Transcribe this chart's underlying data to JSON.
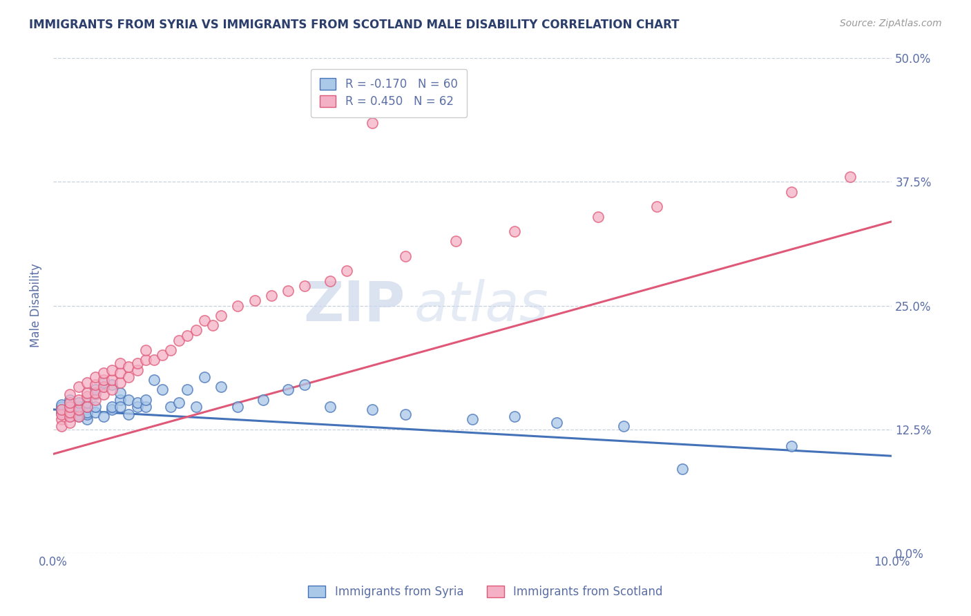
{
  "title": "IMMIGRANTS FROM SYRIA VS IMMIGRANTS FROM SCOTLAND MALE DISABILITY CORRELATION CHART",
  "source": "Source: ZipAtlas.com",
  "ylabel": "Male Disability",
  "xlim": [
    0.0,
    0.1
  ],
  "ylim": [
    0.0,
    0.5
  ],
  "xticks": [
    0.0,
    0.02,
    0.04,
    0.06,
    0.08,
    0.1
  ],
  "xtick_labels": [
    "0.0%",
    "",
    "",
    "",
    "",
    "10.0%"
  ],
  "ytick_labels": [
    "0.0%",
    "12.5%",
    "25.0%",
    "37.5%",
    "50.0%"
  ],
  "yticks": [
    0.0,
    0.125,
    0.25,
    0.375,
    0.5
  ],
  "R_syria": -0.17,
  "N_syria": 60,
  "R_scotland": 0.45,
  "N_scotland": 62,
  "color_syria": "#aac8e8",
  "color_scotland": "#f4b0c4",
  "line_color_syria": "#4472b8",
  "line_color_scotland": "#e05878",
  "title_color": "#2c3e6b",
  "axis_label_color": "#5b6fa6",
  "tick_color": "#5b6fa6",
  "watermark_zip": "ZIP",
  "watermark_atlas": "atlas",
  "legend_entry_syria": "Immigrants from Syria",
  "legend_entry_scotland": "Immigrants from Scotland",
  "syria_x": [
    0.001,
    0.001,
    0.001,
    0.001,
    0.002,
    0.002,
    0.002,
    0.002,
    0.002,
    0.002,
    0.003,
    0.003,
    0.003,
    0.003,
    0.003,
    0.004,
    0.004,
    0.004,
    0.004,
    0.004,
    0.005,
    0.005,
    0.005,
    0.005,
    0.006,
    0.006,
    0.006,
    0.007,
    0.007,
    0.007,
    0.008,
    0.008,
    0.008,
    0.009,
    0.009,
    0.01,
    0.01,
    0.011,
    0.011,
    0.012,
    0.013,
    0.014,
    0.015,
    0.016,
    0.017,
    0.018,
    0.02,
    0.022,
    0.025,
    0.028,
    0.03,
    0.033,
    0.038,
    0.042,
    0.05,
    0.055,
    0.06,
    0.068,
    0.075,
    0.088
  ],
  "syria_y": [
    0.145,
    0.148,
    0.142,
    0.15,
    0.138,
    0.145,
    0.142,
    0.148,
    0.152,
    0.155,
    0.14,
    0.138,
    0.144,
    0.148,
    0.152,
    0.135,
    0.14,
    0.142,
    0.148,
    0.152,
    0.16,
    0.165,
    0.142,
    0.148,
    0.138,
    0.168,
    0.172,
    0.145,
    0.148,
    0.17,
    0.155,
    0.148,
    0.162,
    0.14,
    0.155,
    0.148,
    0.152,
    0.148,
    0.155,
    0.175,
    0.165,
    0.148,
    0.152,
    0.165,
    0.148,
    0.178,
    0.168,
    0.148,
    0.155,
    0.165,
    0.17,
    0.148,
    0.145,
    0.14,
    0.135,
    0.138,
    0.132,
    0.128,
    0.085,
    0.108
  ],
  "scotland_x": [
    0.001,
    0.001,
    0.001,
    0.001,
    0.002,
    0.002,
    0.002,
    0.002,
    0.002,
    0.002,
    0.003,
    0.003,
    0.003,
    0.003,
    0.004,
    0.004,
    0.004,
    0.004,
    0.005,
    0.005,
    0.005,
    0.005,
    0.006,
    0.006,
    0.006,
    0.006,
    0.007,
    0.007,
    0.007,
    0.008,
    0.008,
    0.008,
    0.009,
    0.009,
    0.01,
    0.01,
    0.011,
    0.011,
    0.012,
    0.013,
    0.014,
    0.015,
    0.016,
    0.017,
    0.018,
    0.019,
    0.02,
    0.022,
    0.024,
    0.026,
    0.028,
    0.03,
    0.033,
    0.035,
    0.038,
    0.042,
    0.048,
    0.055,
    0.065,
    0.072,
    0.088,
    0.095
  ],
  "scotland_y": [
    0.135,
    0.128,
    0.14,
    0.145,
    0.132,
    0.138,
    0.142,
    0.148,
    0.152,
    0.16,
    0.138,
    0.145,
    0.155,
    0.168,
    0.148,
    0.158,
    0.162,
    0.172,
    0.155,
    0.162,
    0.17,
    0.178,
    0.16,
    0.168,
    0.175,
    0.182,
    0.165,
    0.175,
    0.185,
    0.172,
    0.182,
    0.192,
    0.178,
    0.188,
    0.185,
    0.192,
    0.195,
    0.205,
    0.195,
    0.2,
    0.205,
    0.215,
    0.22,
    0.225,
    0.235,
    0.23,
    0.24,
    0.25,
    0.255,
    0.26,
    0.265,
    0.27,
    0.275,
    0.285,
    0.435,
    0.3,
    0.315,
    0.325,
    0.34,
    0.35,
    0.365,
    0.38
  ]
}
